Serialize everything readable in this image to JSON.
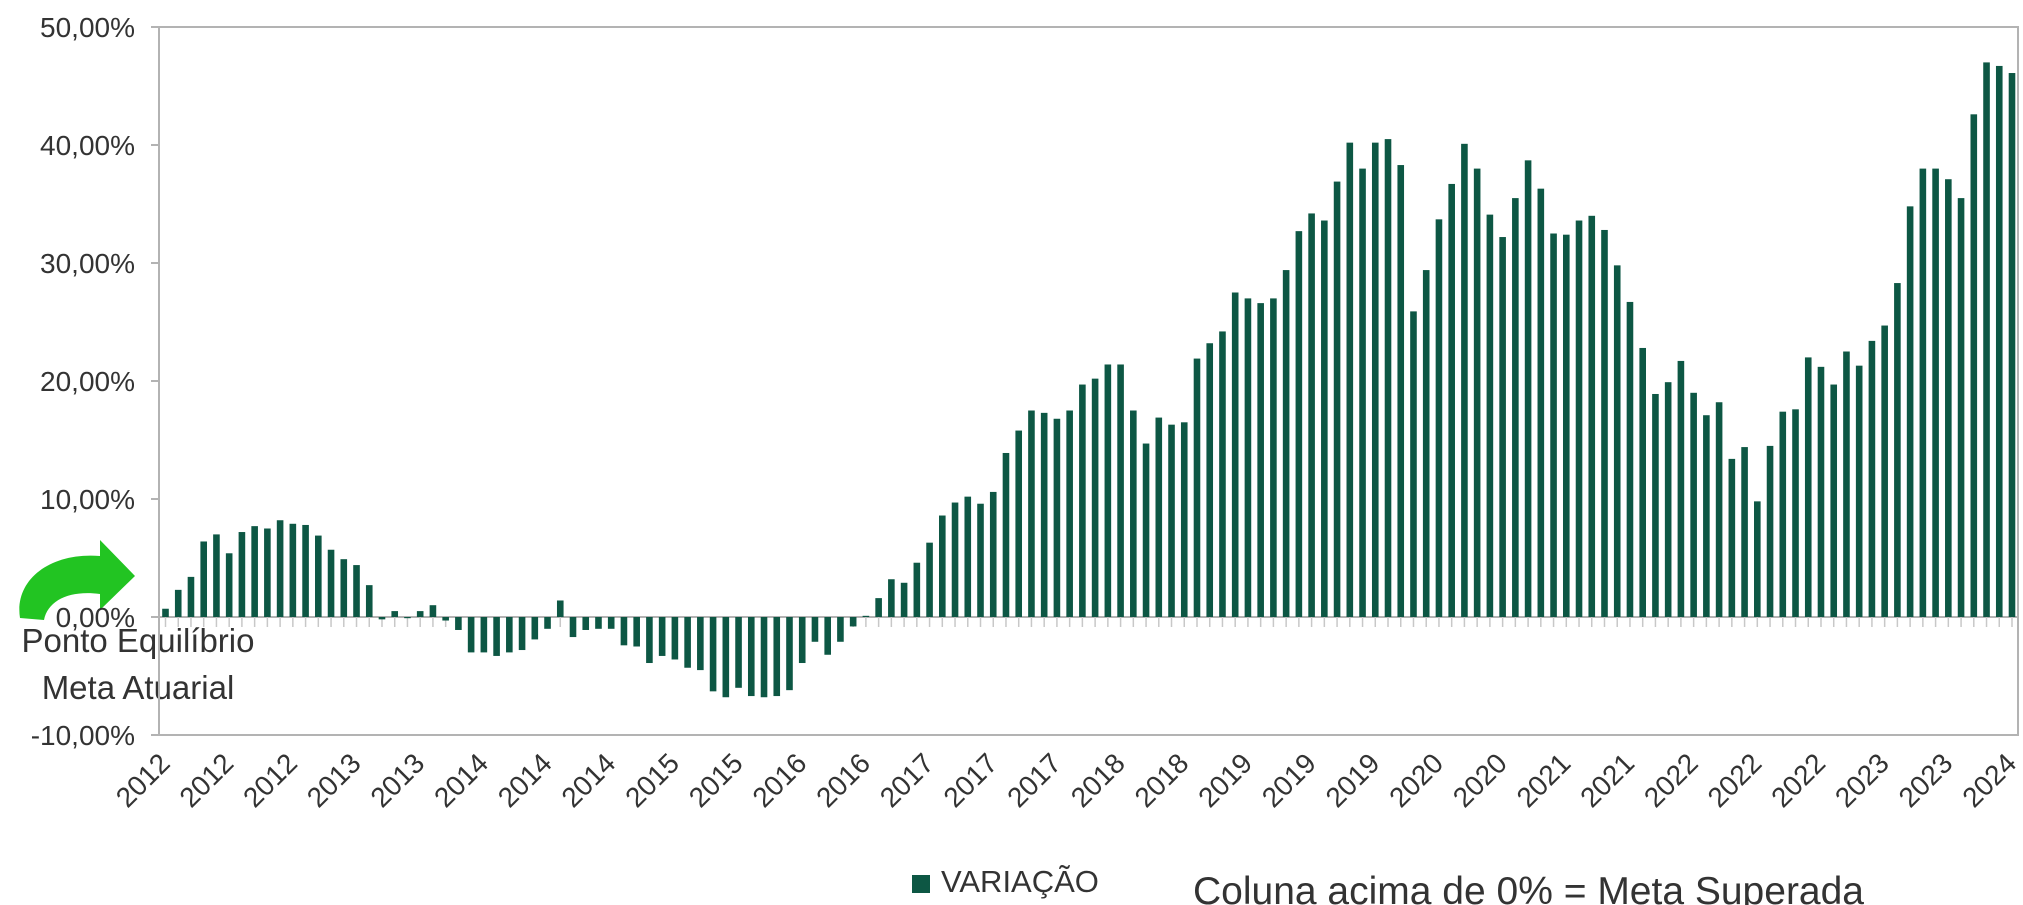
{
  "chart_data": {
    "type": "bar",
    "categories": [
      "2012",
      null,
      null,
      null,
      null,
      "2012",
      null,
      null,
      null,
      null,
      "2012",
      null,
      null,
      null,
      null,
      "2013",
      null,
      null,
      null,
      null,
      "2013",
      null,
      null,
      null,
      null,
      "2014",
      null,
      null,
      null,
      null,
      "2014",
      null,
      null,
      null,
      null,
      "2014",
      null,
      null,
      null,
      null,
      "2015",
      null,
      null,
      null,
      null,
      "2015",
      null,
      null,
      null,
      null,
      "2016",
      null,
      null,
      null,
      null,
      "2016",
      null,
      null,
      null,
      null,
      "2017",
      null,
      null,
      null,
      null,
      "2017",
      null,
      null,
      null,
      null,
      "2017",
      null,
      null,
      null,
      null,
      "2018",
      null,
      null,
      null,
      null,
      "2018",
      null,
      null,
      null,
      null,
      "2019",
      null,
      null,
      null,
      null,
      "2019",
      null,
      null,
      null,
      null,
      "2019",
      null,
      null,
      null,
      null,
      "2020",
      null,
      null,
      null,
      null,
      "2020",
      null,
      null,
      null,
      null,
      "2021",
      null,
      null,
      null,
      null,
      "2021",
      null,
      null,
      null,
      null,
      "2022",
      null,
      null,
      null,
      null,
      "2022",
      null,
      null,
      null,
      null,
      "2022",
      null,
      null,
      null,
      null,
      "2023",
      null,
      null,
      null,
      null,
      "2023",
      null,
      null,
      null,
      null,
      "2024"
    ],
    "series": [
      {
        "name": "VARIAÇÃO",
        "color": "#0d5744",
        "values": [
          0.7,
          2.3,
          3.4,
          6.4,
          7.0,
          5.4,
          7.2,
          7.7,
          7.5,
          8.2,
          7.9,
          7.8,
          6.9,
          5.7,
          4.9,
          4.4,
          2.7,
          -0.2,
          0.5,
          -0.1,
          0.5,
          1.0,
          -0.3,
          -1.1,
          -3.0,
          -3.0,
          -3.3,
          -3.0,
          -2.8,
          -1.9,
          -1.0,
          1.4,
          -1.7,
          -1.1,
          -1.0,
          -1.0,
          -2.4,
          -2.5,
          -3.9,
          -3.3,
          -3.6,
          -4.3,
          -4.5,
          -6.3,
          -6.8,
          -6.0,
          -6.7,
          -6.8,
          -6.7,
          -6.2,
          -3.9,
          -2.1,
          -3.2,
          -2.1,
          -0.8,
          0.1,
          1.6,
          3.2,
          2.9,
          4.6,
          6.3,
          8.6,
          9.7,
          10.2,
          9.6,
          10.6,
          13.9,
          15.8,
          17.5,
          17.3,
          16.8,
          17.5,
          19.7,
          20.2,
          21.4,
          21.4,
          17.5,
          14.7,
          16.9,
          16.3,
          16.5,
          21.9,
          23.2,
          24.2,
          27.5,
          27.0,
          26.6,
          27.0,
          29.4,
          32.7,
          34.2,
          33.6,
          36.9,
          40.2,
          38.0,
          40.2,
          40.5,
          38.3,
          25.9,
          29.4,
          33.7,
          36.7,
          40.1,
          38.0,
          34.1,
          32.2,
          35.5,
          38.7,
          36.3,
          32.5,
          32.4,
          33.6,
          34.0,
          32.8,
          29.8,
          26.7,
          22.8,
          18.9,
          19.9,
          21.7,
          19.0,
          17.1,
          18.2,
          13.4,
          14.4,
          9.8,
          14.5,
          17.4,
          17.6,
          22.0,
          21.2,
          19.7,
          22.5,
          21.3,
          23.4,
          24.7,
          28.3,
          34.8,
          38.0,
          38.0,
          37.1,
          35.5,
          42.6,
          47.0,
          46.7,
          46.1
        ]
      }
    ],
    "ylim": [
      -10,
      50
    ],
    "yticks": [
      {
        "value": -10,
        "label": "-10,00%"
      },
      {
        "value": 0,
        "label": "0,00%"
      },
      {
        "value": 10,
        "label": "10,00%"
      },
      {
        "value": 20,
        "label": "20,00%"
      },
      {
        "value": 30,
        "label": "30,00%"
      },
      {
        "value": 40,
        "label": "40,00%"
      },
      {
        "value": 50,
        "label": "50,00%"
      }
    ],
    "grid": false,
    "legend": "bottom",
    "annotations": [
      "Ponto Equilíbrio",
      "Meta Atuarial",
      "Coluna acima de 0% = Meta Superada"
    ]
  }
}
